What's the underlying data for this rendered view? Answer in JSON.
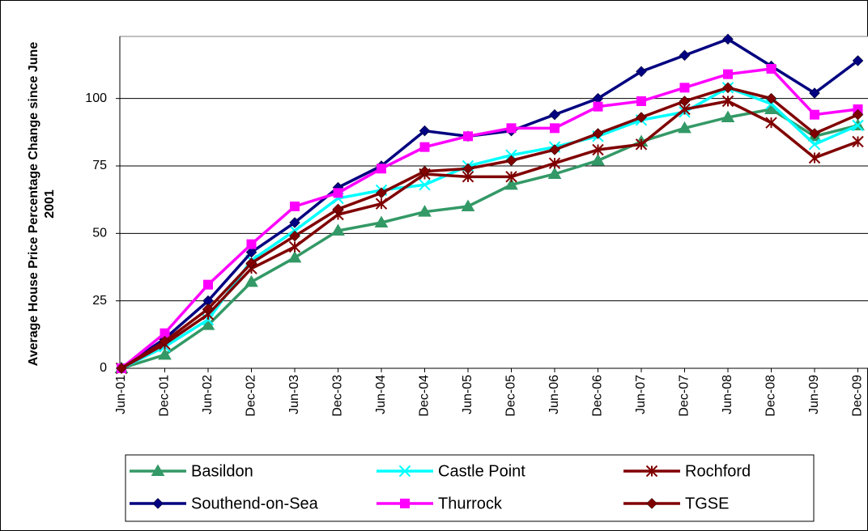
{
  "chart_data": {
    "type": "line",
    "y_label": "Average House Price Percentage Change since June 2001",
    "categories": [
      "Jun-01",
      "Dec-01",
      "Jun-02",
      "Dec-02",
      "Jun-03",
      "Dec-03",
      "Jun-04",
      "Dec-04",
      "Jun-05",
      "Dec-05",
      "Jun-06",
      "Dec-06",
      "Jun-07",
      "Dec-07",
      "Jun-08",
      "Dec-08",
      "Jun-09",
      "Dec-09"
    ],
    "series": [
      {
        "name": "Basildon",
        "color": "#339966",
        "marker": "triangle",
        "values": [
          0,
          5,
          16,
          32,
          41,
          51,
          54,
          58,
          60,
          68,
          72,
          77,
          84,
          89,
          93,
          96,
          86,
          90
        ]
      },
      {
        "name": "Castle Point",
        "color": "#00FFFF",
        "marker": "x",
        "values": [
          0,
          8,
          18,
          40,
          51,
          63,
          66,
          68,
          75,
          79,
          82,
          86,
          92,
          95,
          104,
          98,
          83,
          90
        ]
      },
      {
        "name": "Rochford",
        "color": "#800000",
        "marker": "star",
        "values": [
          0,
          9,
          20,
          37,
          45,
          57,
          61,
          72,
          71,
          71,
          76,
          81,
          83,
          96,
          99,
          91,
          78,
          84
        ]
      },
      {
        "name": "Southend-on-Sea",
        "color": "#000080",
        "marker": "diamond",
        "values": [
          0,
          11,
          25,
          43,
          54,
          67,
          75,
          88,
          86,
          88,
          94,
          100,
          110,
          116,
          122,
          112,
          102,
          114
        ]
      },
      {
        "name": "Thurrock",
        "color": "#FF00FF",
        "marker": "square",
        "values": [
          0,
          13,
          31,
          46,
          60,
          65,
          74,
          82,
          86,
          89,
          89,
          97,
          99,
          104,
          109,
          111,
          94,
          96
        ]
      },
      {
        "name": "TGSE",
        "color": "#800000",
        "marker": "diamond",
        "values": [
          0,
          10,
          22,
          39,
          49,
          59,
          65,
          73,
          74,
          77,
          81,
          87,
          93,
          99,
          104,
          100,
          87,
          94
        ]
      }
    ],
    "ylim": [
      0,
      123
    ],
    "yticks": [
      0,
      25,
      50,
      75,
      100
    ],
    "grid": true
  }
}
